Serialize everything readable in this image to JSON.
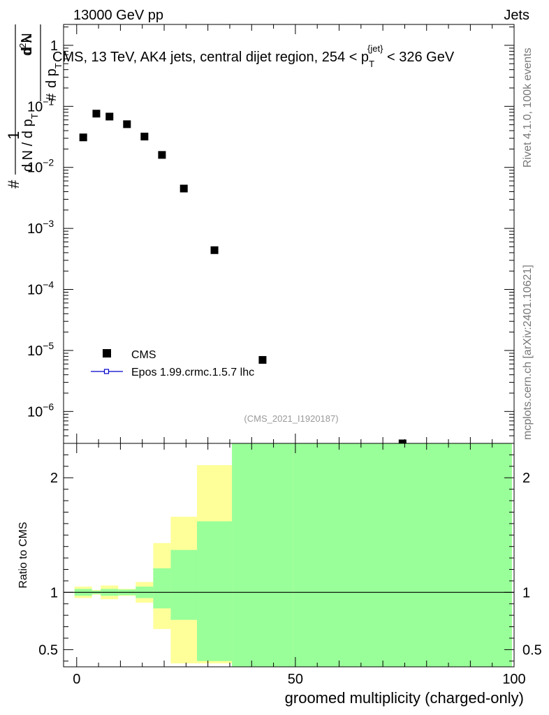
{
  "header": {
    "energy_label": "13000 GeV pp",
    "process_label": "Jets"
  },
  "side_labels": {
    "rivet_version": "Rivet 4.1.0,  100k events",
    "website": "mcplots.cern.ch [arXiv:2401.10621]"
  },
  "chart_data": [
    {
      "type": "scatter",
      "title_main": "CMS, 13 TeV, AK4 jets, central dijet region, 254 < p",
      "title_sub": "T",
      "title_sup": "{jet}",
      "title_end": " < 326 GeV",
      "analysis_id": "(CMS_2021_I1920187)",
      "yscale": "log",
      "ylim": [
        3e-07,
        2.2
      ],
      "xlim": [
        -3,
        100
      ],
      "ylabel_parts": {
        "hash": "#",
        "one": "1",
        "dN": "d N / d p",
        "dN_sub": "T",
        "hash2": "#",
        "d2N": "d",
        "d2N_sup": "2",
        "d2N_rest": "N",
        "dpT": "d p",
        "dpT_sub": "T",
        "dlambda": "d λ"
      },
      "yticks": [
        {
          "value": 1,
          "label": "1"
        },
        {
          "value": 0.1,
          "label": "10",
          "exp": "−1"
        },
        {
          "value": 0.01,
          "label": "10",
          "exp": "−2"
        },
        {
          "value": 0.001,
          "label": "10",
          "exp": "−3"
        },
        {
          "value": 0.0001,
          "label": "10",
          "exp": "−4"
        },
        {
          "value": 1e-05,
          "label": "10",
          "exp": "−5"
        },
        {
          "value": 1e-06,
          "label": "10",
          "exp": "−6"
        }
      ],
      "series": [
        {
          "name": "CMS",
          "marker": "square",
          "color": "#000000",
          "x": [
            1.5,
            4.5,
            7.5,
            11.5,
            15.5,
            19.5,
            24.5,
            31.5,
            42.5,
            74.5
          ],
          "y": [
            0.031,
            0.076,
            0.068,
            0.051,
            0.032,
            0.016,
            0.0045,
            0.00044,
            7e-06,
            3e-07
          ]
        },
        {
          "name": "Epos 1.99.crmc.1.5.7 lhc",
          "marker": "line-open-square",
          "color": "#0000cc",
          "x": [],
          "y": []
        }
      ],
      "legend": "lower-left"
    },
    {
      "type": "area",
      "ylabel": "Ratio to CMS",
      "xlabel": "groomed multiplicity (charged-only)",
      "xlim": [
        -3,
        100
      ],
      "ylim": [
        0.35,
        2.3
      ],
      "xticks": [
        0,
        50,
        100
      ],
      "yticks": [
        {
          "value": 0.5,
          "label": "0.5"
        },
        {
          "value": 1,
          "label": "1"
        },
        {
          "value": 2,
          "label": "2"
        }
      ],
      "bins_lo": [
        -0.5,
        3.5,
        5.5,
        9.5,
        13.5,
        17.5,
        21.5,
        27.5,
        35.5,
        49.5
      ],
      "bins_hi": [
        3.5,
        5.5,
        9.5,
        13.5,
        17.5,
        21.5,
        27.5,
        35.5,
        49.5,
        99.5
      ],
      "stat_band": {
        "color": "#99ff99",
        "lo": [
          0.97,
          0.985,
          0.97,
          0.975,
          0.95,
          0.86,
          0.76,
          0.4,
          0.35,
          0.35
        ],
        "hi": [
          1.03,
          1.015,
          1.03,
          1.025,
          1.05,
          1.21,
          1.37,
          1.62,
          2.3,
          2.3
        ]
      },
      "syst_band": {
        "color": "#ffff99",
        "lo": [
          0.95,
          0.98,
          0.94,
          0.97,
          0.91,
          0.68,
          0.38,
          0.38,
          0.35,
          0.35
        ],
        "hi": [
          1.05,
          1.02,
          1.06,
          1.03,
          1.09,
          1.43,
          1.66,
          2.11,
          2.3,
          2.3
        ]
      },
      "reference_line": 1
    }
  ]
}
